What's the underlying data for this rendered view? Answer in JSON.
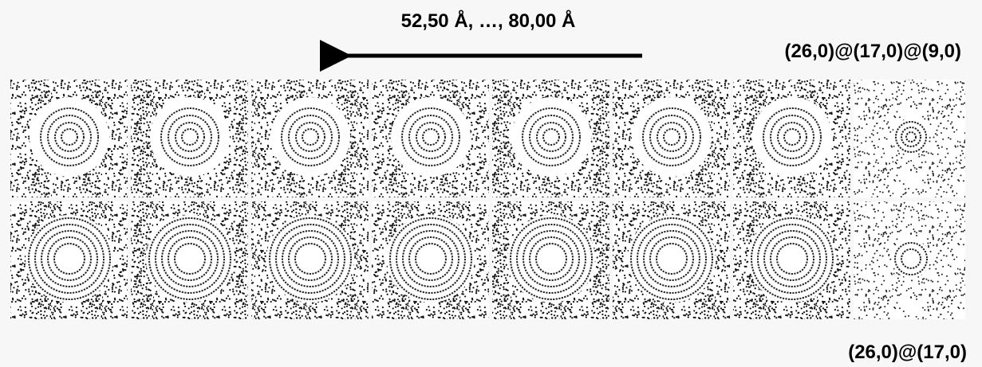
{
  "header": {
    "title": "52,50 Å, …, 80,00 Å"
  },
  "labels": {
    "top_row": "(26,0)@(17,0)@(9,0)",
    "bottom_row": "(26,0)@(17,0)"
  }
}
